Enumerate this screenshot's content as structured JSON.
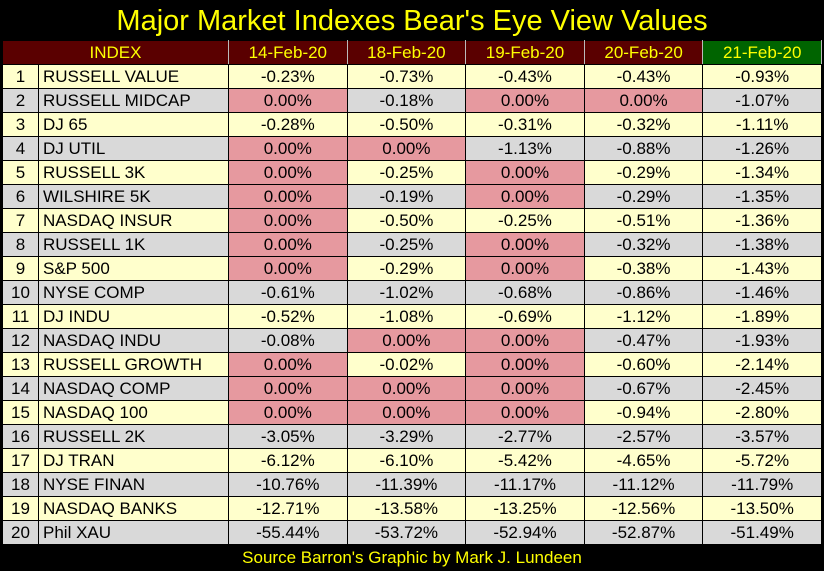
{
  "title": "Major Market Indexes Bear's Eye View Values",
  "colors": {
    "header_bg": "#5a0000",
    "header_last_bg": "#006400",
    "header_text": "#ffff00",
    "odd_row": "#ffffcc",
    "even_row": "#d9d9d9",
    "zero_cell": "#e6999f"
  },
  "table": {
    "index_header": "INDEX",
    "dates": [
      "14-Feb-20",
      "18-Feb-20",
      "19-Feb-20",
      "20-Feb-20",
      "21-Feb-20"
    ],
    "rows": [
      {
        "n": "1",
        "name": "RUSSELL VALUE",
        "values": [
          "-0.23%",
          "-0.73%",
          "-0.43%",
          "-0.43%",
          "-0.93%"
        ]
      },
      {
        "n": "2",
        "name": "RUSSELL MIDCAP",
        "values": [
          "0.00%",
          "-0.18%",
          "0.00%",
          "0.00%",
          "-1.07%"
        ]
      },
      {
        "n": "3",
        "name": "DJ  65",
        "values": [
          "-0.28%",
          "-0.50%",
          "-0.31%",
          "-0.32%",
          "-1.11%"
        ]
      },
      {
        "n": "4",
        "name": "DJ  UTIL",
        "values": [
          "0.00%",
          "0.00%",
          "-1.13%",
          "-0.88%",
          "-1.26%"
        ]
      },
      {
        "n": "5",
        "name": "RUSSELL 3K",
        "values": [
          "0.00%",
          "-0.25%",
          "0.00%",
          "-0.29%",
          "-1.34%"
        ]
      },
      {
        "n": "6",
        "name": "WILSHIRE 5K",
        "values": [
          "0.00%",
          "-0.19%",
          "0.00%",
          "-0.29%",
          "-1.35%"
        ]
      },
      {
        "n": "7",
        "name": "NASDAQ INSUR",
        "values": [
          "0.00%",
          "-0.50%",
          "-0.25%",
          "-0.51%",
          "-1.36%"
        ]
      },
      {
        "n": "8",
        "name": "RUSSELL 1K",
        "values": [
          "0.00%",
          "-0.25%",
          "0.00%",
          "-0.32%",
          "-1.38%"
        ]
      },
      {
        "n": "9",
        "name": "S&P 500",
        "values": [
          "0.00%",
          "-0.29%",
          "0.00%",
          "-0.38%",
          "-1.43%"
        ]
      },
      {
        "n": "10",
        "name": "NYSE COMP",
        "values": [
          "-0.61%",
          "-1.02%",
          "-0.68%",
          "-0.86%",
          "-1.46%"
        ]
      },
      {
        "n": "11",
        "name": "DJ  INDU",
        "values": [
          "-0.52%",
          "-1.08%",
          "-0.69%",
          "-1.12%",
          "-1.89%"
        ]
      },
      {
        "n": "12",
        "name": "NASDAQ INDU",
        "values": [
          "-0.08%",
          "0.00%",
          "0.00%",
          "-0.47%",
          "-1.93%"
        ]
      },
      {
        "n": "13",
        "name": "RUSSELL GROWTH",
        "values": [
          "0.00%",
          "-0.02%",
          "0.00%",
          "-0.60%",
          "-2.14%"
        ]
      },
      {
        "n": "14",
        "name": "NASDAQ COMP",
        "values": [
          "0.00%",
          "0.00%",
          "0.00%",
          "-0.67%",
          "-2.45%"
        ]
      },
      {
        "n": "15",
        "name": "NASDAQ 100",
        "values": [
          "0.00%",
          "0.00%",
          "0.00%",
          "-0.94%",
          "-2.80%"
        ]
      },
      {
        "n": "16",
        "name": "RUSSELL 2K",
        "values": [
          "-3.05%",
          "-3.29%",
          "-2.77%",
          "-2.57%",
          "-3.57%"
        ]
      },
      {
        "n": "17",
        "name": "DJ  TRAN",
        "values": [
          "-6.12%",
          "-6.10%",
          "-5.42%",
          "-4.65%",
          "-5.72%"
        ]
      },
      {
        "n": "18",
        "name": "NYSE FINAN",
        "values": [
          "-10.76%",
          "-11.39%",
          "-11.17%",
          "-11.12%",
          "-11.79%"
        ]
      },
      {
        "n": "19",
        "name": "NASDAQ BANKS",
        "values": [
          "-12.71%",
          "-13.58%",
          "-13.25%",
          "-12.56%",
          "-13.50%"
        ]
      },
      {
        "n": "20",
        "name": "Phil XAU",
        "values": [
          "-55.44%",
          "-53.72%",
          "-52.94%",
          "-52.87%",
          "-51.49%"
        ]
      }
    ]
  },
  "footer": "Source Barron's   Graphic by Mark J. Lundeen"
}
